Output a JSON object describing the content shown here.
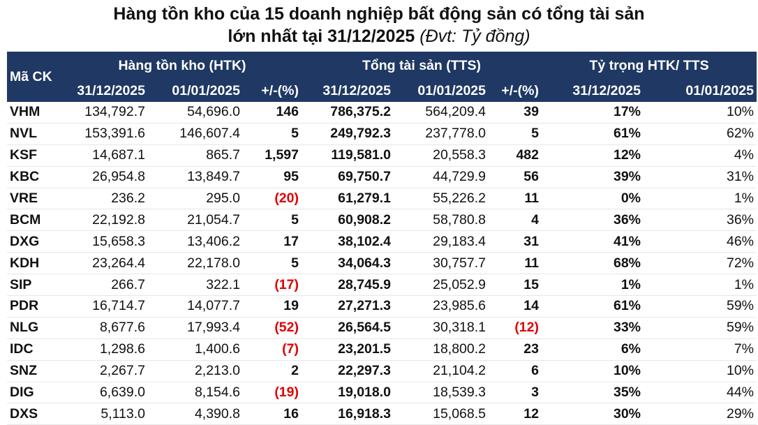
{
  "title": {
    "line1": "Hàng tồn kho của 15 doanh nghiệp bất động sản có tổng tài sản",
    "line2_main": "lớn nhất tại 31/12/2025",
    "line2_unit": "(Đvt: Tỷ đồng)"
  },
  "header": {
    "code": "Mã CK",
    "group_inventory": "Hàng tồn kho (HTK)",
    "group_assets": "Tổng tài sản (TTS)",
    "group_ratio": "Tỷ trọng HTK/ TTS",
    "date_end": "31/12/2025",
    "date_start": "01/01/2025",
    "change": "+/-(%)"
  },
  "rows": [
    {
      "code": "VHM",
      "inv_end": "134,792.7",
      "inv_start": "54,696.0",
      "inv_chg": "146",
      "inv_neg": false,
      "tts_end": "786,375.2",
      "tts_start": "564,209.4",
      "tts_chg": "39",
      "tts_neg": false,
      "r_end": "17%",
      "r_start": "10%"
    },
    {
      "code": "NVL",
      "inv_end": "153,391.6",
      "inv_start": "146,607.4",
      "inv_chg": "5",
      "inv_neg": false,
      "tts_end": "249,792.3",
      "tts_start": "237,778.0",
      "tts_chg": "5",
      "tts_neg": false,
      "r_end": "61%",
      "r_start": "62%"
    },
    {
      "code": "KSF",
      "inv_end": "14,687.1",
      "inv_start": "865.7",
      "inv_chg": "1,597",
      "inv_neg": false,
      "tts_end": "119,581.0",
      "tts_start": "20,558.3",
      "tts_chg": "482",
      "tts_neg": false,
      "r_end": "12%",
      "r_start": "4%"
    },
    {
      "code": "KBC",
      "inv_end": "26,954.8",
      "inv_start": "13,849.7",
      "inv_chg": "95",
      "inv_neg": false,
      "tts_end": "69,750.7",
      "tts_start": "44,729.9",
      "tts_chg": "56",
      "tts_neg": false,
      "r_end": "39%",
      "r_start": "31%"
    },
    {
      "code": "VRE",
      "inv_end": "236.2",
      "inv_start": "295.0",
      "inv_chg": "(20)",
      "inv_neg": true,
      "tts_end": "61,279.1",
      "tts_start": "55,226.2",
      "tts_chg": "11",
      "tts_neg": false,
      "r_end": "0%",
      "r_start": "1%"
    },
    {
      "code": "BCM",
      "inv_end": "22,192.8",
      "inv_start": "21,054.7",
      "inv_chg": "5",
      "inv_neg": false,
      "tts_end": "60,908.2",
      "tts_start": "58,780.8",
      "tts_chg": "4",
      "tts_neg": false,
      "r_end": "36%",
      "r_start": "36%"
    },
    {
      "code": "DXG",
      "inv_end": "15,658.3",
      "inv_start": "13,406.2",
      "inv_chg": "17",
      "inv_neg": false,
      "tts_end": "38,102.4",
      "tts_start": "29,183.4",
      "tts_chg": "31",
      "tts_neg": false,
      "r_end": "41%",
      "r_start": "46%"
    },
    {
      "code": "KDH",
      "inv_end": "23,264.4",
      "inv_start": "22,178.0",
      "inv_chg": "5",
      "inv_neg": false,
      "tts_end": "34,064.3",
      "tts_start": "30,757.7",
      "tts_chg": "11",
      "tts_neg": false,
      "r_end": "68%",
      "r_start": "72%"
    },
    {
      "code": "SIP",
      "inv_end": "266.7",
      "inv_start": "322.1",
      "inv_chg": "(17)",
      "inv_neg": true,
      "tts_end": "28,745.9",
      "tts_start": "25,052.9",
      "tts_chg": "15",
      "tts_neg": false,
      "r_end": "1%",
      "r_start": "1%"
    },
    {
      "code": "PDR",
      "inv_end": "16,714.7",
      "inv_start": "14,077.7",
      "inv_chg": "19",
      "inv_neg": false,
      "tts_end": "27,271.3",
      "tts_start": "23,985.6",
      "tts_chg": "14",
      "tts_neg": false,
      "r_end": "61%",
      "r_start": "59%"
    },
    {
      "code": "NLG",
      "inv_end": "8,677.6",
      "inv_start": "17,993.4",
      "inv_chg": "(52)",
      "inv_neg": true,
      "tts_end": "26,564.5",
      "tts_start": "30,318.1",
      "tts_chg": "(12)",
      "tts_neg": true,
      "r_end": "33%",
      "r_start": "59%"
    },
    {
      "code": "IDC",
      "inv_end": "1,298.6",
      "inv_start": "1,400.6",
      "inv_chg": "(7)",
      "inv_neg": true,
      "tts_end": "23,201.5",
      "tts_start": "18,800.2",
      "tts_chg": "23",
      "tts_neg": false,
      "r_end": "6%",
      "r_start": "7%"
    },
    {
      "code": "SNZ",
      "inv_end": "2,267.7",
      "inv_start": "2,213.0",
      "inv_chg": "2",
      "inv_neg": false,
      "tts_end": "22,297.3",
      "tts_start": "21,104.2",
      "tts_chg": "6",
      "tts_neg": false,
      "r_end": "10%",
      "r_start": "10%"
    },
    {
      "code": "DIG",
      "inv_end": "6,639.0",
      "inv_start": "8,154.6",
      "inv_chg": "(19)",
      "inv_neg": true,
      "tts_end": "19,018.0",
      "tts_start": "18,539.3",
      "tts_chg": "3",
      "tts_neg": false,
      "r_end": "35%",
      "r_start": "44%"
    },
    {
      "code": "DXS",
      "inv_end": "5,113.0",
      "inv_start": "4,390.8",
      "inv_chg": "16",
      "inv_neg": false,
      "tts_end": "16,918.3",
      "tts_start": "15,068.5",
      "tts_chg": "12",
      "tts_neg": false,
      "r_end": "30%",
      "r_start": "29%"
    }
  ],
  "colors": {
    "header_bg": "#1f3864",
    "header_text": "#ffffff",
    "negative": "#e00000"
  }
}
